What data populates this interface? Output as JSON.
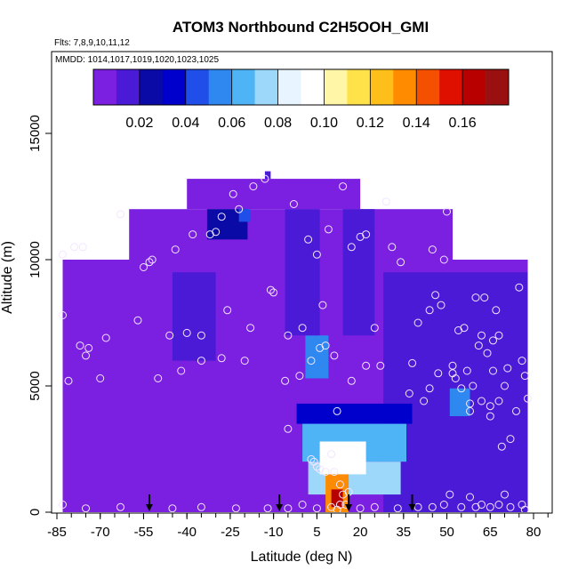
{
  "chart_data": {
    "type": "heatmap",
    "title": "ATOM3 Northbound C2H5OOH_GMI",
    "flights_label": "Flts: 7,8,9,10,11,12",
    "dates_label": "MMDD: 1014,1017,1019,1020,1023,1025",
    "xlabel": "Latitude (deg N)",
    "ylabel": "Altitude (m)",
    "xlim": [
      -85,
      85
    ],
    "ylim": [
      0,
      17500
    ],
    "x_ticks": [
      -85,
      -70,
      -55,
      -40,
      -25,
      -10,
      5,
      20,
      35,
      50,
      65,
      80
    ],
    "x_tick_labels": [
      "-85",
      "-70",
      "-55",
      "-40",
      "-25",
      "-10",
      "5",
      "20",
      "35",
      "50",
      "65",
      "80"
    ],
    "y_ticks": [
      0,
      5000,
      10000,
      15000
    ],
    "y_tick_labels": [
      "0",
      "5000",
      "10000",
      "15000"
    ],
    "colorbar": {
      "min": 0.0,
      "max": 0.18,
      "ticks": [
        0.02,
        0.04,
        0.06,
        0.08,
        0.1,
        0.12,
        0.14,
        0.16
      ],
      "tick_labels": [
        "0.02",
        "0.04",
        "0.06",
        "0.08",
        "0.10",
        "0.12",
        "0.14",
        "0.16"
      ],
      "colors": [
        "#7b1fe0",
        "#4b1ad6",
        "#0a0aa6",
        "#0000cc",
        "#1f4fe8",
        "#2f88f0",
        "#4fb4f6",
        "#9dd8fb",
        "#e8f4ff",
        "#ffffff",
        "#fff6a8",
        "#ffe24a",
        "#ffbf1a",
        "#ff8c00",
        "#f55000",
        "#e01000",
        "#b80000",
        "#9a1010"
      ]
    },
    "arrows_latitude": [
      -53,
      -8,
      16,
      38
    ],
    "field_regions": [
      {
        "lat": [
          -83,
          78
        ],
        "alt": [
          0,
          10000
        ],
        "value": 0.003
      },
      {
        "lat": [
          -60,
          52
        ],
        "alt": [
          10000,
          12000
        ],
        "value": 0.003
      },
      {
        "lat": [
          -40,
          20
        ],
        "alt": [
          12000,
          13200
        ],
        "value": 0.003
      },
      {
        "lat": [
          -13,
          -11
        ],
        "alt": [
          13200,
          13500
        ],
        "value": 0.012
      },
      {
        "lat": [
          -45,
          -30
        ],
        "alt": [
          6000,
          9500
        ],
        "value": 0.016
      },
      {
        "lat": [
          -33,
          -19
        ],
        "alt": [
          10800,
          12000
        ],
        "value": 0.02
      },
      {
        "lat": [
          -22,
          -18
        ],
        "alt": [
          11500,
          12000
        ],
        "value": 0.04
      },
      {
        "lat": [
          1,
          9
        ],
        "alt": [
          5300,
          7000
        ],
        "value": 0.05
      },
      {
        "lat": [
          -6,
          6
        ],
        "alt": [
          7000,
          12000
        ],
        "value": 0.014
      },
      {
        "lat": [
          14,
          25
        ],
        "alt": [
          7000,
          12000
        ],
        "value": 0.014
      },
      {
        "lat": [
          28,
          78
        ],
        "alt": [
          0,
          9500
        ],
        "value": 0.017
      },
      {
        "lat": [
          51,
          58
        ],
        "alt": [
          3800,
          4900
        ],
        "value": 0.05
      },
      {
        "lat": [
          -2,
          38
        ],
        "alt": [
          3500,
          4300
        ],
        "value": 0.035
      },
      {
        "lat": [
          0,
          36
        ],
        "alt": [
          2000,
          3500
        ],
        "value": 0.06
      },
      {
        "lat": [
          2,
          34
        ],
        "alt": [
          700,
          2000
        ],
        "value": 0.07
      },
      {
        "lat": [
          6,
          22
        ],
        "alt": [
          1500,
          2800
        ],
        "value": 0.095
      },
      {
        "lat": [
          8,
          16
        ],
        "alt": [
          0,
          1500
        ],
        "value": 0.13
      },
      {
        "lat": [
          10,
          14
        ],
        "alt": [
          200,
          900
        ],
        "value": 0.16
      }
    ],
    "sample_points": [
      [
        -83,
        7800
      ],
      [
        -83,
        10200
      ],
      [
        -81,
        5200
      ],
      [
        -79,
        10500
      ],
      [
        -77,
        6600
      ],
      [
        -75,
        6200
      ],
      [
        -74,
        6500
      ],
      [
        -76,
        10500
      ],
      [
        -70,
        5300
      ],
      [
        -68,
        6900
      ],
      [
        -63,
        11800
      ],
      [
        -57,
        7600
      ],
      [
        -55,
        9700
      ],
      [
        -53,
        9900
      ],
      [
        -52,
        10000
      ],
      [
        -50,
        5300
      ],
      [
        -46,
        7000
      ],
      [
        -44,
        10400
      ],
      [
        -42,
        5600
      ],
      [
        -40,
        7100
      ],
      [
        -38,
        11000
      ],
      [
        -35,
        6000
      ],
      [
        -35,
        7000
      ],
      [
        -32,
        11000
      ],
      [
        -30,
        11100
      ],
      [
        -28,
        11700
      ],
      [
        -28,
        6100
      ],
      [
        -26,
        8000
      ],
      [
        -24,
        12600
      ],
      [
        -22,
        12000
      ],
      [
        -20,
        6000
      ],
      [
        -18,
        7300
      ],
      [
        -17,
        12900
      ],
      [
        -13,
        13200
      ],
      [
        -11,
        8800
      ],
      [
        -10,
        8700
      ],
      [
        -6,
        5200
      ],
      [
        -5,
        7000
      ],
      [
        -3,
        12200
      ],
      [
        -1,
        5400
      ],
      [
        0,
        7300
      ],
      [
        2,
        10800
      ],
      [
        3,
        6000
      ],
      [
        5,
        10200
      ],
      [
        7,
        8200
      ],
      [
        6,
        6500
      ],
      [
        8,
        6600
      ],
      [
        9,
        11200
      ],
      [
        11,
        6200
      ],
      [
        12,
        4000
      ],
      [
        14,
        12900
      ],
      [
        17,
        5200
      ],
      [
        17,
        10500
      ],
      [
        20,
        10900
      ],
      [
        22,
        11000
      ],
      [
        22,
        5800
      ],
      [
        25,
        7300
      ],
      [
        27,
        5800
      ],
      [
        29,
        12300
      ],
      [
        31,
        10500
      ],
      [
        34,
        9900
      ],
      [
        37,
        4700
      ],
      [
        38,
        5900
      ],
      [
        40,
        7500
      ],
      [
        42,
        4400
      ],
      [
        44,
        8000
      ],
      [
        44,
        4900
      ],
      [
        45,
        10400
      ],
      [
        46,
        8600
      ],
      [
        47,
        5500
      ],
      [
        48,
        8200
      ],
      [
        49,
        10000
      ],
      [
        50,
        11900
      ],
      [
        52,
        5800
      ],
      [
        52,
        5500
      ],
      [
        53,
        5300
      ],
      [
        54,
        7200
      ],
      [
        55,
        4900
      ],
      [
        56,
        7300
      ],
      [
        57,
        5600
      ],
      [
        58,
        4000
      ],
      [
        58,
        4300
      ],
      [
        59,
        5000
      ],
      [
        60,
        8500
      ],
      [
        61,
        6600
      ],
      [
        62,
        4400
      ],
      [
        62,
        7000
      ],
      [
        63,
        8500
      ],
      [
        64,
        6300
      ],
      [
        65,
        4200
      ],
      [
        65,
        3800
      ],
      [
        66,
        5600
      ],
      [
        66,
        6800
      ],
      [
        67,
        8000
      ],
      [
        68,
        4400
      ],
      [
        68,
        7000
      ],
      [
        69,
        2600
      ],
      [
        70,
        5000
      ],
      [
        71,
        5700
      ],
      [
        72,
        2900
      ],
      [
        74,
        4000
      ],
      [
        75,
        8900
      ],
      [
        76,
        6000
      ],
      [
        77,
        5400
      ],
      [
        78,
        4500
      ],
      [
        -5,
        3300
      ],
      [
        3,
        2100
      ],
      [
        4,
        2000
      ],
      [
        5,
        1800
      ],
      [
        6,
        1700
      ],
      [
        8,
        1600
      ],
      [
        11,
        1600
      ],
      [
        10,
        2300
      ],
      [
        13,
        1100
      ],
      [
        14,
        700
      ],
      [
        16,
        800
      ],
      [
        15,
        300
      ],
      [
        13,
        300
      ],
      [
        12,
        100
      ],
      [
        10,
        200
      ],
      [
        -83,
        300
      ],
      [
        -75,
        150
      ],
      [
        -63,
        200
      ],
      [
        -45,
        150
      ],
      [
        -35,
        200
      ],
      [
        -23,
        150
      ],
      [
        -12,
        150
      ],
      [
        0,
        300
      ],
      [
        20,
        150
      ],
      [
        33,
        150
      ],
      [
        45,
        200
      ],
      [
        49,
        300
      ],
      [
        51,
        700
      ],
      [
        55,
        200
      ],
      [
        58,
        600
      ],
      [
        62,
        300
      ],
      [
        65,
        200
      ],
      [
        68,
        300
      ],
      [
        72,
        200
      ],
      [
        76,
        300
      ],
      [
        77,
        100
      ],
      [
        -5,
        150
      ],
      [
        5,
        150
      ],
      [
        25,
        200
      ],
      [
        40,
        200
      ],
      [
        60,
        200
      ],
      [
        70,
        700
      ]
    ]
  }
}
